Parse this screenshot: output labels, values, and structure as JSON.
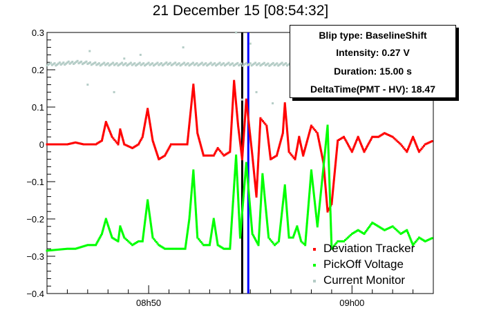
{
  "chart_data": {
    "type": "scatter",
    "title": "21 December 15 [08:54:32]",
    "xlabel": "",
    "ylabel": "",
    "ylim": [
      -0.4,
      0.3
    ],
    "xlim_minutes": [
      -5.0,
      14.0
    ],
    "y_ticks": [
      "0.3",
      "0.2",
      "0.1",
      "0",
      "−0.1",
      "−0.2",
      "−0.3",
      "−0.4"
    ],
    "x_ticks": [
      "08h50",
      "09h00"
    ],
    "grid": false,
    "legend_position": "bottom-right",
    "markers_minutes": [
      {
        "x": 4.6,
        "color": "#000000"
      },
      {
        "x": 4.9,
        "color": "#0000ff"
      }
    ],
    "series": [
      {
        "name": "Deviation Tracker",
        "color": "#ff0000",
        "points": [
          [
            -5.0,
            0.0
          ],
          [
            -4.0,
            0.0
          ],
          [
            -3.6,
            0.005
          ],
          [
            -3.2,
            0.0
          ],
          [
            -2.6,
            0.0
          ],
          [
            -2.3,
            0.01
          ],
          [
            -2.1,
            0.06
          ],
          [
            -1.8,
            0.02
          ],
          [
            -1.5,
            0.0
          ],
          [
            -1.4,
            0.04
          ],
          [
            -1.2,
            0.0
          ],
          [
            -0.8,
            -0.01
          ],
          [
            -0.5,
            0.0
          ],
          [
            -0.3,
            0.02
          ],
          [
            -0.05,
            0.095
          ],
          [
            0.2,
            0.01
          ],
          [
            0.5,
            -0.04
          ],
          [
            0.8,
            -0.03
          ],
          [
            1.1,
            0.0
          ],
          [
            1.4,
            0.0
          ],
          [
            1.9,
            0.0
          ],
          [
            2.2,
            0.16
          ],
          [
            2.4,
            0.03
          ],
          [
            2.7,
            -0.03
          ],
          [
            3.2,
            -0.03
          ],
          [
            3.4,
            -0.01
          ],
          [
            3.7,
            -0.03
          ],
          [
            4.0,
            -0.02
          ],
          [
            4.2,
            0.17
          ],
          [
            4.4,
            0.05
          ],
          [
            4.6,
            -0.04
          ],
          [
            4.8,
            0.12
          ],
          [
            5.1,
            -0.03
          ],
          [
            5.3,
            -0.14
          ],
          [
            5.5,
            0.07
          ],
          [
            5.8,
            0.05
          ],
          [
            6.0,
            -0.04
          ],
          [
            6.3,
            -0.03
          ],
          [
            6.6,
            0.03
          ],
          [
            6.7,
            0.11
          ],
          [
            6.9,
            -0.02
          ],
          [
            7.2,
            -0.04
          ],
          [
            7.4,
            0.02
          ],
          [
            7.6,
            -0.03
          ],
          [
            8.0,
            0.05
          ],
          [
            8.3,
            0.03
          ],
          [
            8.6,
            -0.05
          ],
          [
            8.8,
            -0.18
          ],
          [
            9.0,
            -0.16
          ],
          [
            9.3,
            0.01
          ],
          [
            9.6,
            0.02
          ],
          [
            10.0,
            -0.02
          ],
          [
            10.3,
            0.02
          ],
          [
            10.6,
            -0.02
          ],
          [
            11.0,
            0.02
          ],
          [
            11.3,
            0.02
          ],
          [
            11.6,
            0.03
          ],
          [
            12.0,
            0.02
          ],
          [
            12.4,
            0.0
          ],
          [
            12.7,
            -0.02
          ],
          [
            13.0,
            0.02
          ],
          [
            13.3,
            -0.02
          ],
          [
            13.6,
            0.0
          ],
          [
            14.0,
            0.01
          ]
        ]
      },
      {
        "name": "PickOff Voltage",
        "color": "#00ff00",
        "points": [
          [
            -5.0,
            -0.285
          ],
          [
            -4.0,
            -0.28
          ],
          [
            -3.6,
            -0.28
          ],
          [
            -3.0,
            -0.27
          ],
          [
            -2.6,
            -0.27
          ],
          [
            -2.3,
            -0.24
          ],
          [
            -2.1,
            -0.2
          ],
          [
            -1.8,
            -0.25
          ],
          [
            -1.5,
            -0.26
          ],
          [
            -1.4,
            -0.22
          ],
          [
            -1.2,
            -0.25
          ],
          [
            -0.8,
            -0.27
          ],
          [
            -0.5,
            -0.26
          ],
          [
            -0.3,
            -0.26
          ],
          [
            -0.05,
            -0.15
          ],
          [
            0.2,
            -0.25
          ],
          [
            0.5,
            -0.27
          ],
          [
            0.8,
            -0.28
          ],
          [
            1.2,
            -0.28
          ],
          [
            1.8,
            -0.28
          ],
          [
            2.0,
            -0.2
          ],
          [
            2.2,
            -0.07
          ],
          [
            2.4,
            -0.25
          ],
          [
            2.7,
            -0.27
          ],
          [
            3.0,
            -0.27
          ],
          [
            3.2,
            -0.2
          ],
          [
            3.4,
            -0.27
          ],
          [
            3.7,
            -0.28
          ],
          [
            4.0,
            -0.28
          ],
          [
            4.3,
            -0.03
          ],
          [
            4.5,
            -0.25
          ],
          [
            4.8,
            -0.05
          ],
          [
            5.1,
            -0.24
          ],
          [
            5.4,
            -0.27
          ],
          [
            5.6,
            -0.08
          ],
          [
            5.9,
            -0.25
          ],
          [
            6.2,
            -0.27
          ],
          [
            6.4,
            -0.26
          ],
          [
            6.7,
            -0.11
          ],
          [
            6.9,
            -0.25
          ],
          [
            7.1,
            -0.25
          ],
          [
            7.3,
            -0.22
          ],
          [
            7.5,
            -0.26
          ],
          [
            7.7,
            -0.27
          ],
          [
            8.0,
            -0.07
          ],
          [
            8.3,
            -0.22
          ],
          [
            8.6,
            -0.06
          ],
          [
            8.8,
            0.05
          ],
          [
            9.0,
            -0.28
          ],
          [
            9.3,
            -0.26
          ],
          [
            9.6,
            -0.26
          ],
          [
            10.0,
            -0.24
          ],
          [
            10.3,
            -0.23
          ],
          [
            10.6,
            -0.24
          ],
          [
            11.0,
            -0.21
          ],
          [
            11.3,
            -0.22
          ],
          [
            11.6,
            -0.23
          ],
          [
            12.0,
            -0.22
          ],
          [
            12.4,
            -0.24
          ],
          [
            12.7,
            -0.23
          ],
          [
            13.0,
            -0.27
          ],
          [
            13.3,
            -0.25
          ],
          [
            13.6,
            -0.26
          ],
          [
            14.0,
            -0.25
          ]
        ]
      },
      {
        "name": "Current Monitor",
        "color": "#b4ccc6",
        "points": [
          [
            -5.0,
            0.215
          ],
          [
            -4.5,
            0.215
          ],
          [
            -4.0,
            0.218
          ],
          [
            -3.5,
            0.22
          ],
          [
            -3.0,
            0.218
          ],
          [
            -2.5,
            0.215
          ],
          [
            -2.0,
            0.215
          ],
          [
            -1.5,
            0.215
          ],
          [
            -1.0,
            0.215
          ],
          [
            -0.5,
            0.215
          ],
          [
            0.0,
            0.215
          ],
          [
            0.5,
            0.215
          ],
          [
            1.0,
            0.216
          ],
          [
            1.5,
            0.215
          ],
          [
            2.0,
            0.215
          ],
          [
            2.5,
            0.215
          ],
          [
            3.0,
            0.215
          ],
          [
            3.5,
            0.215
          ],
          [
            4.0,
            0.215
          ],
          [
            4.5,
            0.214
          ],
          [
            5.0,
            0.215
          ],
          [
            5.5,
            0.215
          ],
          [
            6.0,
            0.214
          ],
          [
            6.5,
            0.215
          ],
          [
            7.0,
            0.215
          ],
          [
            7.5,
            0.216
          ],
          [
            8.0,
            0.215
          ],
          [
            -3.0,
            0.16
          ],
          [
            -2.9,
            0.25
          ],
          [
            -1.7,
            0.14
          ],
          [
            -1.2,
            0.23
          ],
          [
            -0.4,
            0.24
          ],
          [
            1.7,
            0.26
          ],
          [
            4.3,
            0.3
          ],
          [
            4.6,
            0.12
          ],
          [
            5.0,
            0.27
          ],
          [
            5.3,
            0.14
          ],
          [
            6.1,
            0.11
          ],
          [
            7.0,
            0.25
          ],
          [
            7.6,
            0.27
          ],
          [
            8.1,
            0.16
          ]
        ]
      }
    ]
  },
  "info_box": {
    "blip_type": "Blip type: BaselineShift",
    "intensity": "Intensity: 0.27 V",
    "duration": "Duration: 15.00 s",
    "delta_time": "DeltaTime(PMT - HV): 18.47"
  }
}
